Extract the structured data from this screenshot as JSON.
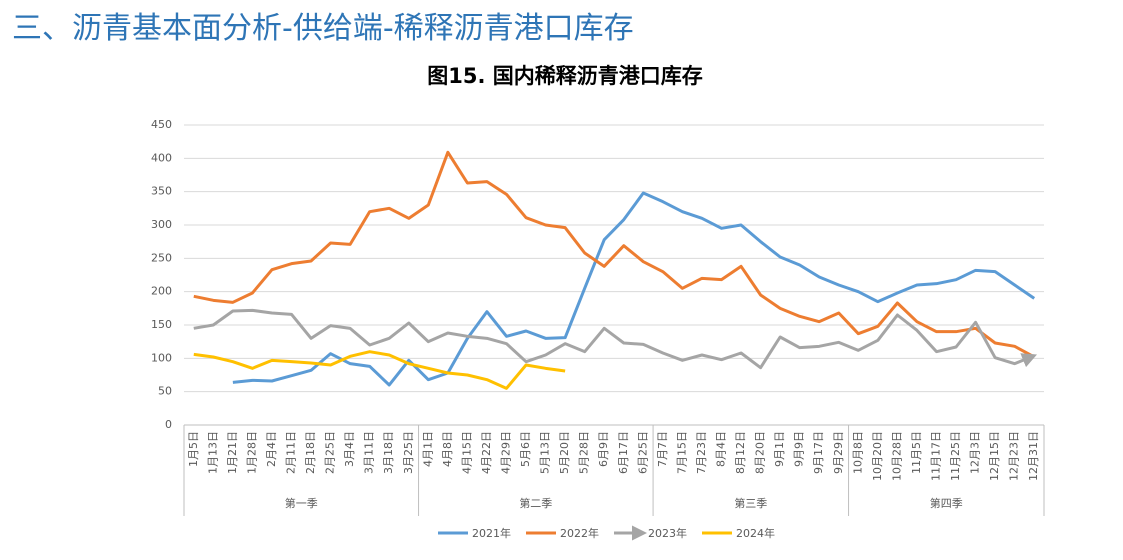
{
  "header": {
    "title": "三、沥青基本面分析-供给端-稀释沥青港口库存"
  },
  "chart_data": {
    "type": "line",
    "title": "图15. 国内稀释沥青港口库存",
    "categories": [
      "1月5日",
      "1月13日",
      "1月21日",
      "1月28日",
      "2月4日",
      "2月11日",
      "2月18日",
      "2月25日",
      "3月4日",
      "3月11日",
      "3月18日",
      "3月25日",
      "4月1日",
      "4月8日",
      "4月15日",
      "4月22日",
      "4月29日",
      "5月6日",
      "5月13日",
      "5月20日",
      "5月28日",
      "6月9日",
      "6月17日",
      "6月25日",
      "7月7日",
      "7月15日",
      "7月23日",
      "8月4日",
      "8月12日",
      "8月20日",
      "9月1日",
      "9月9日",
      "9月17日",
      "9月29日",
      "10月8日",
      "10月20日",
      "10月28日",
      "11月5日",
      "11月17日",
      "11月25日",
      "12月3日",
      "12月15日",
      "12月23日",
      "12月31日"
    ],
    "groups": [
      {
        "name": "第一季",
        "count": 12
      },
      {
        "name": "第二季",
        "count": 12
      },
      {
        "name": "第三季",
        "count": 10
      },
      {
        "name": "第四季",
        "count": 10
      }
    ],
    "series": [
      {
        "name": "2021年",
        "color": "#5b9bd5",
        "values": [
          null,
          null,
          64,
          67,
          66,
          74,
          82,
          107,
          92,
          88,
          60,
          97,
          68,
          78,
          130,
          170,
          133,
          141,
          130,
          131,
          205,
          278,
          308,
          348,
          335,
          320,
          310,
          295,
          300,
          275,
          252,
          240,
          222,
          210,
          200,
          185,
          198,
          210,
          212,
          218,
          232,
          230,
          210,
          190
        ]
      },
      {
        "name": "2022年",
        "color": "#ed7d31",
        "values": [
          193,
          187,
          184,
          198,
          233,
          242,
          246,
          273,
          271,
          320,
          325,
          310,
          330,
          409,
          363,
          365,
          346,
          311,
          300,
          296,
          258,
          238,
          269,
          245,
          230,
          205,
          220,
          218,
          238,
          195,
          175,
          163,
          155,
          168,
          137,
          148,
          183,
          155,
          140,
          140,
          145,
          123,
          118,
          102
        ]
      },
      {
        "name": "2023年",
        "color": "#a5a5a5",
        "end_marker": "arrow",
        "values": [
          145,
          150,
          171,
          172,
          168,
          166,
          130,
          149,
          145,
          120,
          130,
          153,
          125,
          138,
          133,
          130,
          122,
          95,
          105,
          122,
          110,
          145,
          123,
          121,
          108,
          97,
          105,
          98,
          108,
          86,
          132,
          116,
          118,
          124,
          112,
          127,
          165,
          142,
          110,
          117,
          154,
          101,
          92,
          104
        ]
      },
      {
        "name": "2024年",
        "color": "#ffc000",
        "values": [
          106,
          102,
          95,
          85,
          97,
          95,
          93,
          90,
          103,
          110,
          105,
          92,
          85,
          78,
          75,
          68,
          55,
          90,
          85,
          81,
          null,
          null,
          null,
          null,
          null,
          null,
          null,
          null,
          null,
          null,
          null,
          null,
          null,
          null,
          null,
          null,
          null,
          null,
          null,
          null,
          null,
          null,
          null,
          null
        ]
      }
    ],
    "ylim": [
      0,
      450
    ],
    "yticks": [
      0,
      50,
      100,
      150,
      200,
      250,
      300,
      350,
      400,
      450
    ],
    "grid": true,
    "legend": "bottom"
  }
}
